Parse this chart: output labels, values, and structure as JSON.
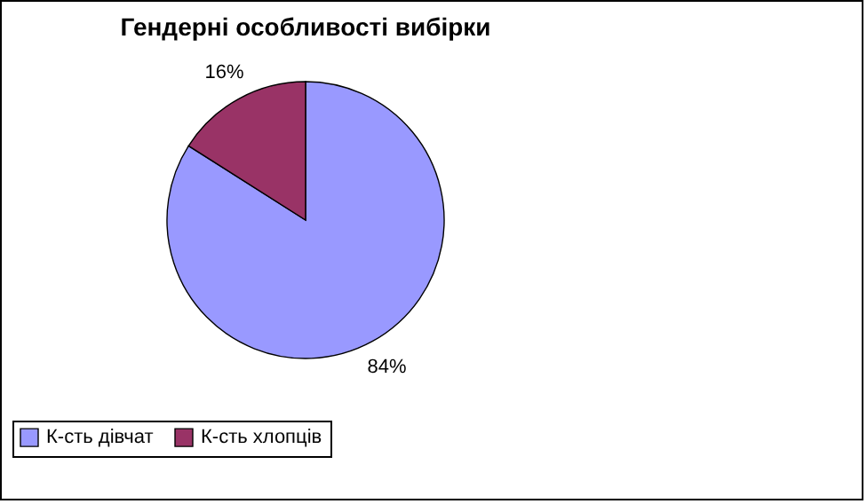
{
  "chart_data": {
    "type": "pie",
    "title": "Гендерні особливості вибірки",
    "categories": [
      "К-сть дівчат",
      "К-сть хлопців"
    ],
    "values": [
      84,
      16
    ],
    "colors": [
      "#9999ff",
      "#993366"
    ],
    "value_labels": [
      "84%",
      "16%"
    ],
    "legend": "bottom"
  }
}
